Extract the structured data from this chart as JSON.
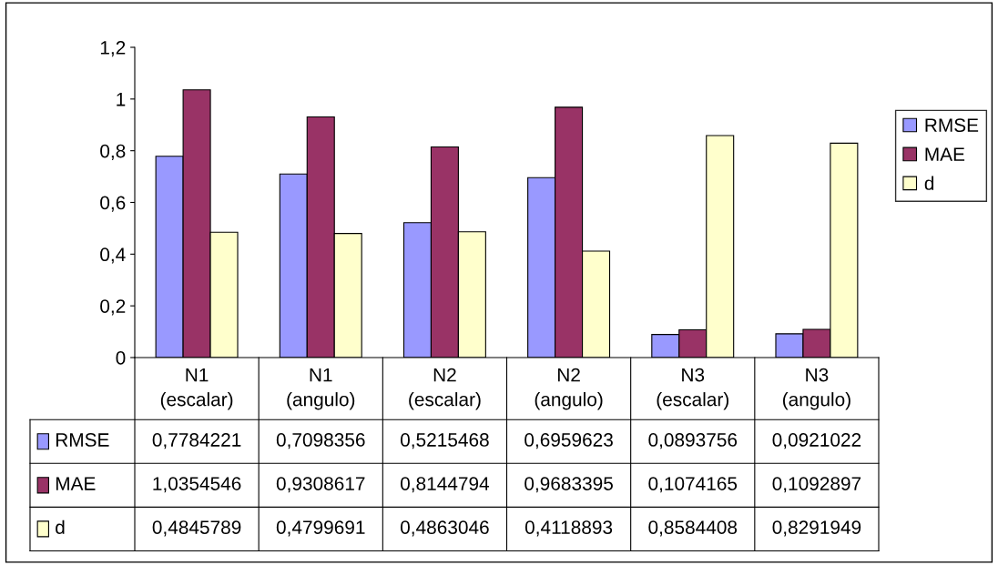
{
  "chart_data": {
    "type": "bar",
    "categories": [
      "N1\n(escalar)",
      "N1\n(angulo)",
      "N2\n(escalar)",
      "N2\n(angulo)",
      "N3\n(escalar)",
      "N3\n(angulo)"
    ],
    "series": [
      {
        "name": "RMSE",
        "color": "#9999ff",
        "values": [
          0.7784221,
          0.7098356,
          0.5215468,
          0.6959623,
          0.0893756,
          0.0921022
        ],
        "value_labels": [
          "0,7784221",
          "0,7098356",
          "0,5215468",
          "0,6959623",
          "0,0893756",
          "0,0921022"
        ]
      },
      {
        "name": "MAE",
        "color": "#993366",
        "values": [
          1.0354546,
          0.9308617,
          0.8144794,
          0.9683395,
          0.1074165,
          0.1092897
        ],
        "value_labels": [
          "1,0354546",
          "0,9308617",
          "0,8144794",
          "0,9683395",
          "0,1074165",
          "0,1092897"
        ]
      },
      {
        "name": "d",
        "color": "#ffffcc",
        "values": [
          0.4845789,
          0.4799691,
          0.4863046,
          0.4118893,
          0.8584408,
          0.8291949
        ],
        "value_labels": [
          "0,4845789",
          "0,4799691",
          "0,4863046",
          "0,4118893",
          "0,8584408",
          "0,8291949"
        ]
      }
    ],
    "ylim": [
      0,
      1.2
    ],
    "yticks": [
      0,
      {
        "value": 0.2,
        "label": "0,2"
      },
      {
        "value": 0.4,
        "label": "0,4"
      },
      {
        "value": 0.6,
        "label": "0,6"
      },
      {
        "value": 0.8,
        "label": "0,8"
      },
      1,
      {
        "value": 1.2,
        "label": "1,2"
      }
    ],
    "grid": false,
    "legend": "right"
  }
}
